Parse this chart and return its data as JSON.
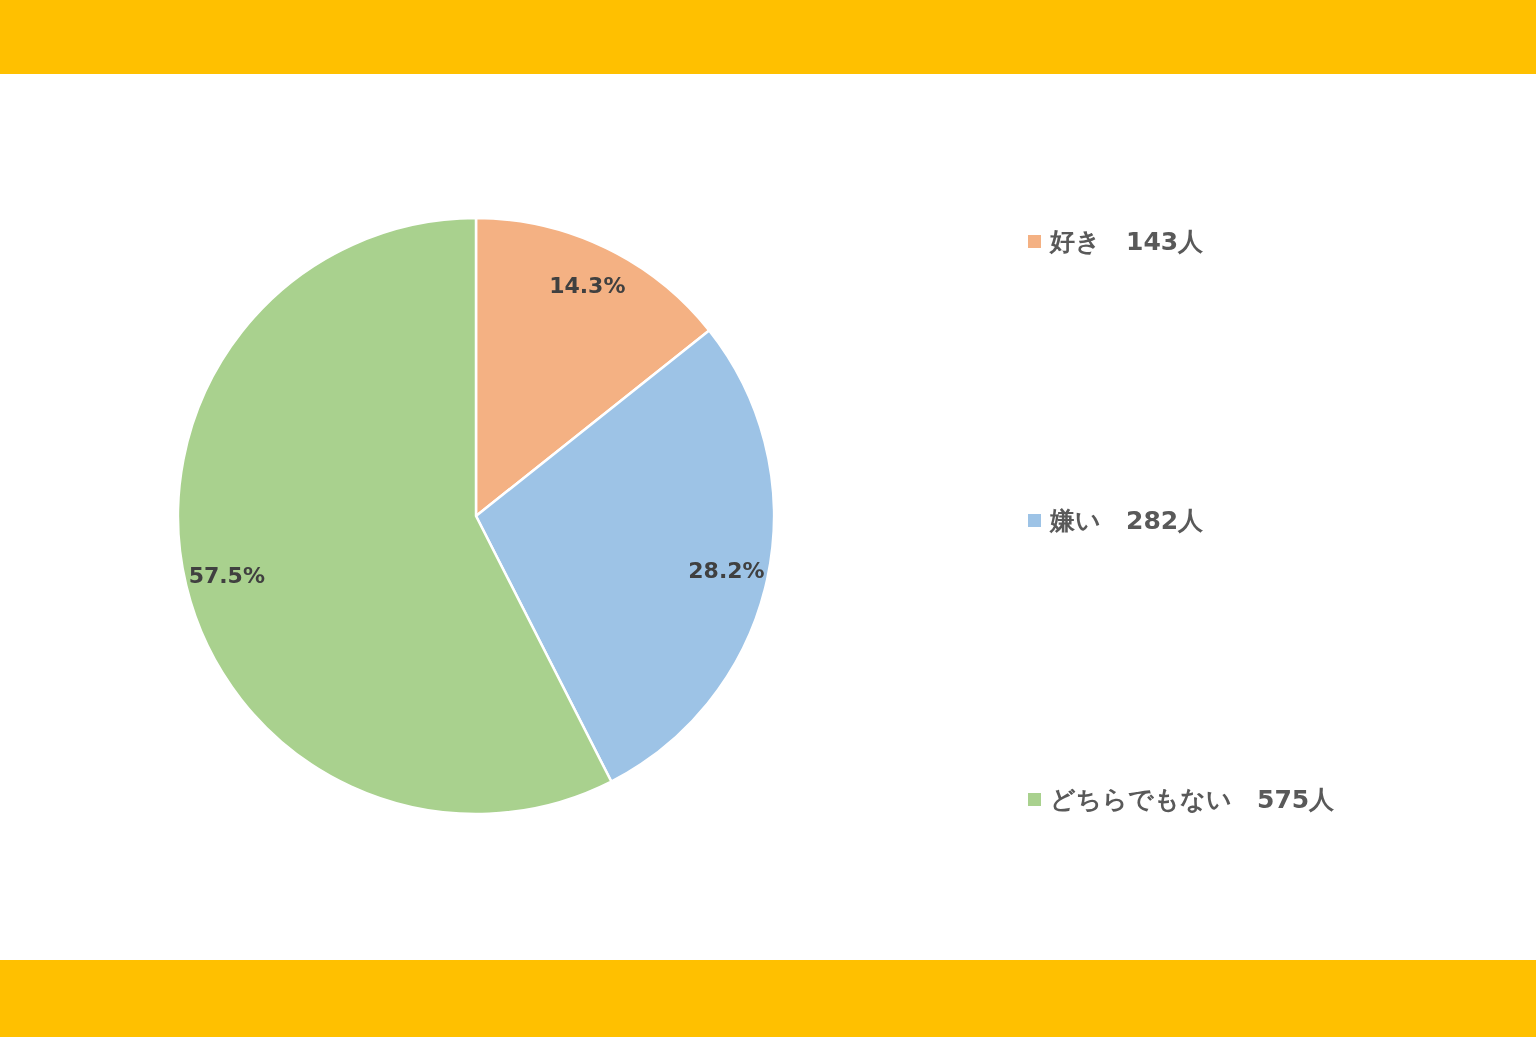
{
  "chart_data": {
    "type": "pie",
    "categories": [
      "好き　143人",
      "嫌い　282人",
      "どちらでもない　575人"
    ],
    "values": [
      14.3,
      28.2,
      57.5
    ],
    "value_labels": [
      "14.3%",
      "28.2%",
      "57.5%"
    ],
    "colors": [
      "#f4b183",
      "#9dc3e6",
      "#a9d18e"
    ],
    "legend": "right"
  }
}
